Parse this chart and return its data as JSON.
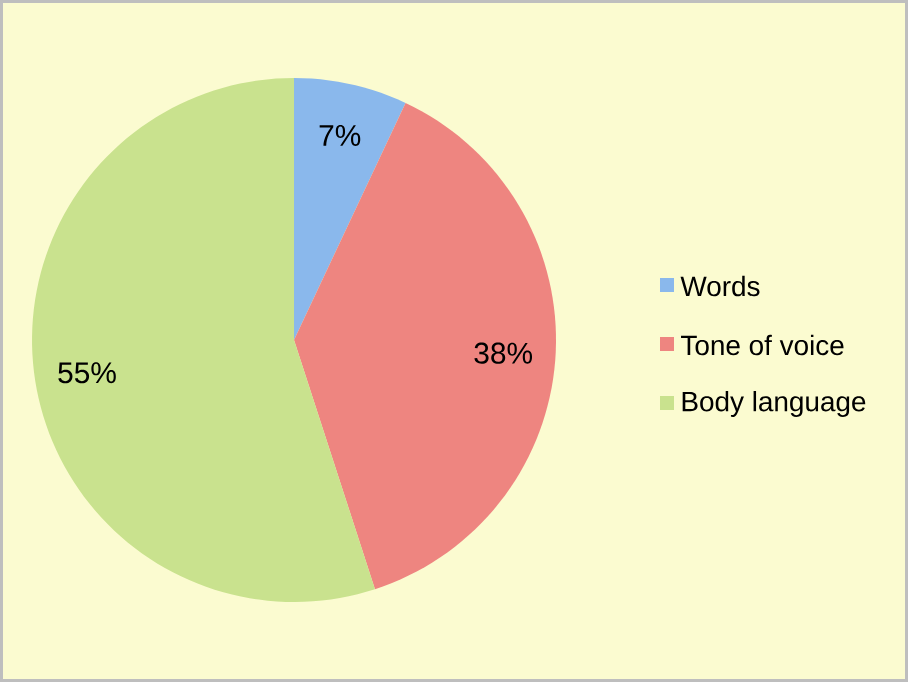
{
  "chart_data": {
    "type": "pie",
    "categories": [
      "Words",
      "Tone of voice",
      "Body language"
    ],
    "values": [
      7,
      38,
      55
    ],
    "colors": [
      "#8ab8ec",
      "#ee8580",
      "#c9e28e"
    ],
    "value_labels": [
      "7%",
      "38%",
      "55%"
    ],
    "legend": "right"
  }
}
